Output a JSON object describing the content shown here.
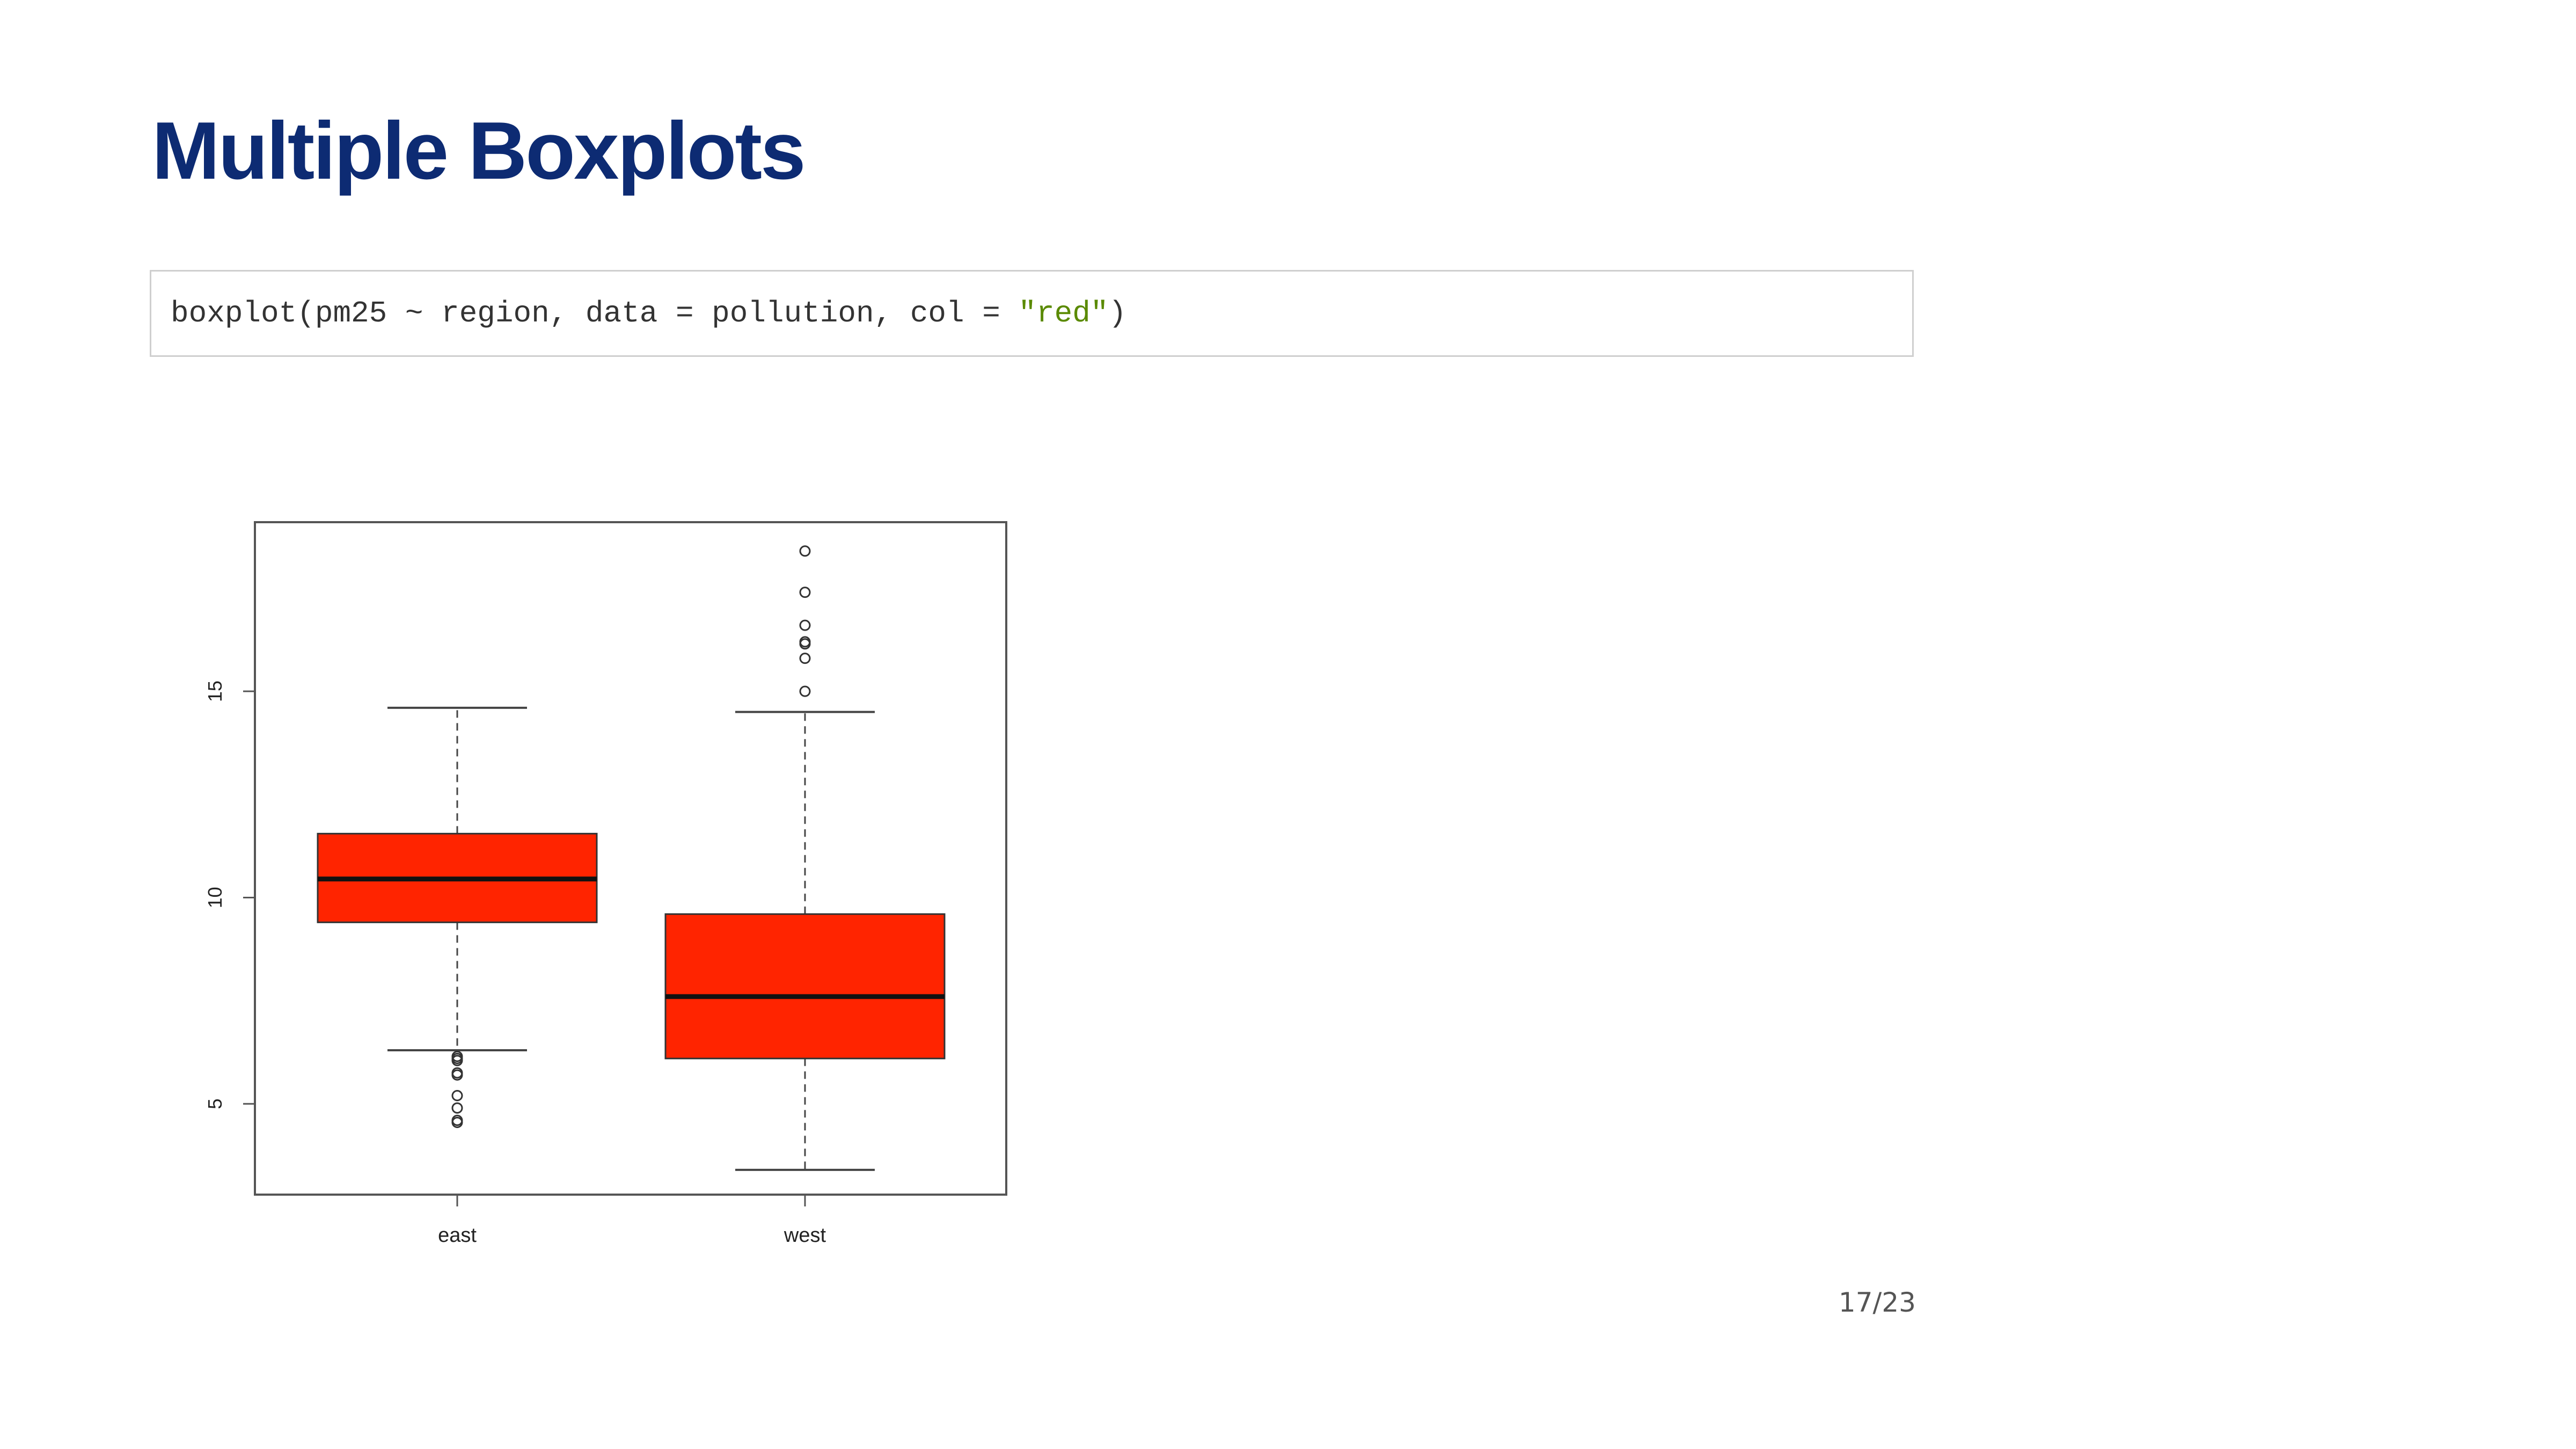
{
  "slide": {
    "title": "Multiple Boxplots",
    "code": {
      "prefix": "boxplot(pm25 ~ region, data = pollution, col = ",
      "string": "\"red\"",
      "suffix": ")"
    },
    "page_number": "17/23"
  },
  "colors": {
    "title": "#0d2b73",
    "box_fill": "#ff2400",
    "string_literal": "#5a8a00"
  },
  "chart_data": {
    "type": "boxplot",
    "categories": [
      "east",
      "west"
    ],
    "ylim": [
      2.8,
      19.1
    ],
    "yticks": [
      5,
      10,
      15
    ],
    "ytick_labels": [
      "5",
      "10",
      "15"
    ],
    "grid": false,
    "series": [
      {
        "category": "east",
        "whisker_low": 6.3,
        "q1": 9.4,
        "median": 10.45,
        "q3": 11.55,
        "whisker_high": 14.6,
        "outliers": [
          6.05,
          6.1,
          6.15,
          5.75,
          5.7,
          5.2,
          4.9,
          4.6,
          4.55
        ]
      },
      {
        "category": "west",
        "whisker_low": 3.4,
        "q1": 6.1,
        "median": 7.6,
        "q3": 9.6,
        "whisker_high": 14.5,
        "outliers": [
          15.0,
          15.8,
          16.15,
          16.2,
          16.6,
          17.4,
          18.4
        ]
      }
    ]
  }
}
